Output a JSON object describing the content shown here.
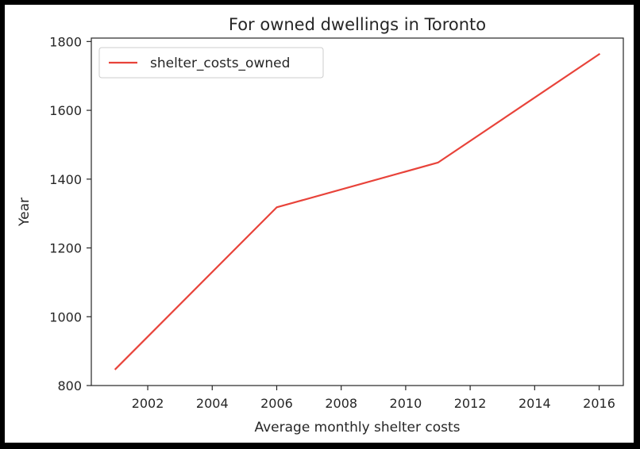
{
  "chart_data": {
    "type": "line",
    "title": "For owned dwellings in Toronto",
    "xlabel": "Average monthly shelter costs",
    "ylabel": "Year",
    "xlim": [
      2000.25,
      2016.75
    ],
    "ylim": [
      800,
      1810
    ],
    "x_ticks": [
      2002,
      2004,
      2006,
      2008,
      2010,
      2012,
      2014,
      2016
    ],
    "y_ticks": [
      800,
      1000,
      1200,
      1400,
      1600,
      1800
    ],
    "grid": false,
    "legend_position": "upper left",
    "series": [
      {
        "name": "shelter_costs_owned",
        "color": "#e8433a",
        "x": [
          2001,
          2006,
          2011,
          2016
        ],
        "y": [
          848,
          1318,
          1448,
          1763
        ]
      }
    ]
  }
}
